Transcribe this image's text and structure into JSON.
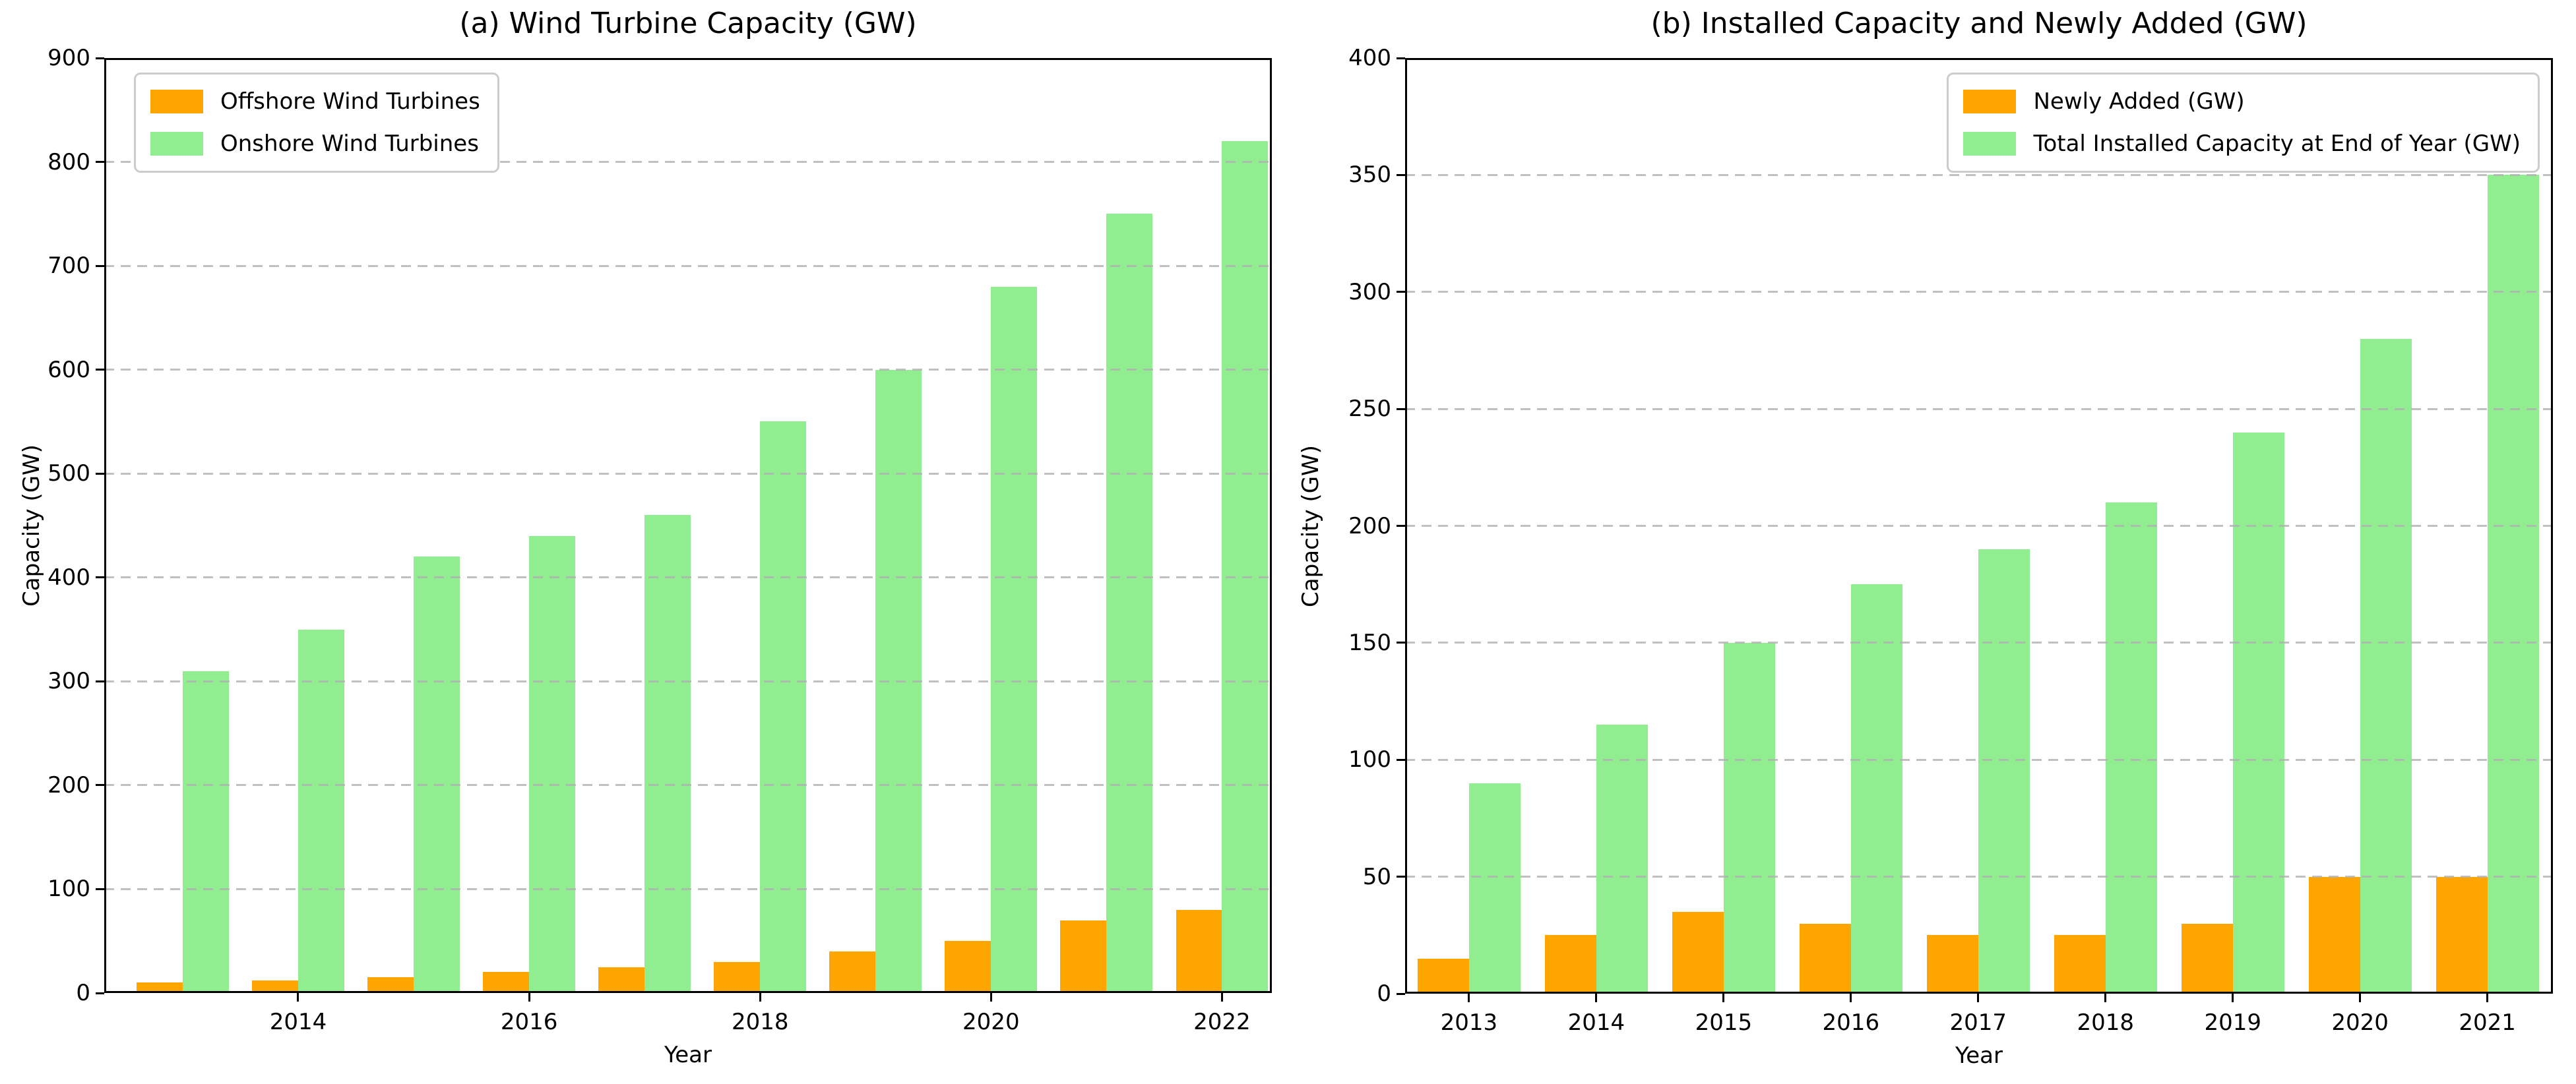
{
  "page": {
    "background": "#ffffff"
  },
  "colors": {
    "bar_orange": "#FFA500",
    "bar_green": "#90EE90",
    "grid": "#b0b0b0",
    "axis": "#000000",
    "text": "#000000",
    "legend_border": "#cccccc"
  },
  "chart_data": [
    {
      "type": "bar",
      "title": "(a) Wind Turbine Capacity (GW)",
      "xlabel": "Year",
      "ylabel": "Capacity (GW)",
      "ylim": [
        0,
        900
      ],
      "yticks": [
        0,
        100,
        200,
        300,
        400,
        500,
        600,
        700,
        800,
        900
      ],
      "grid": "horizontal-dashed",
      "legend_position": "upper-left",
      "categories": [
        "2013",
        "2014",
        "2015",
        "2016",
        "2017",
        "2018",
        "2019",
        "2020",
        "2021",
        "2022"
      ],
      "xtick_labels": [
        "",
        "2014",
        "",
        "2016",
        "",
        "2018",
        "",
        "2020",
        "",
        "2022"
      ],
      "series": [
        {
          "name": "Offshore Wind Turbines",
          "color": "#FFA500",
          "values": [
            10,
            12,
            15,
            20,
            25,
            30,
            40,
            50,
            70,
            80
          ]
        },
        {
          "name": "Onshore Wind Turbines",
          "color": "#90EE90",
          "values": [
            310,
            350,
            420,
            440,
            460,
            550,
            600,
            680,
            750,
            820
          ]
        }
      ]
    },
    {
      "type": "bar",
      "title": "(b) Installed Capacity and Newly Added (GW)",
      "xlabel": "Year",
      "ylabel": "Capacity (GW)",
      "ylim": [
        0,
        400
      ],
      "yticks": [
        0,
        50,
        100,
        150,
        200,
        250,
        300,
        350,
        400
      ],
      "grid": "horizontal-dashed",
      "legend_position": "upper-right",
      "categories": [
        "2013",
        "2014",
        "2015",
        "2016",
        "2017",
        "2018",
        "2019",
        "2020",
        "2021"
      ],
      "xtick_labels": [
        "2013",
        "2014",
        "2015",
        "2016",
        "2017",
        "2018",
        "2019",
        "2020",
        "2021"
      ],
      "series": [
        {
          "name": "Newly Added (GW)",
          "color": "#FFA500",
          "values": [
            15,
            25,
            35,
            30,
            25,
            25,
            30,
            50,
            50
          ]
        },
        {
          "name": "Total Installed Capacity at End of Year (GW)",
          "color": "#90EE90",
          "values": [
            90,
            115,
            150,
            175,
            190,
            210,
            240,
            280,
            350
          ]
        }
      ]
    }
  ]
}
